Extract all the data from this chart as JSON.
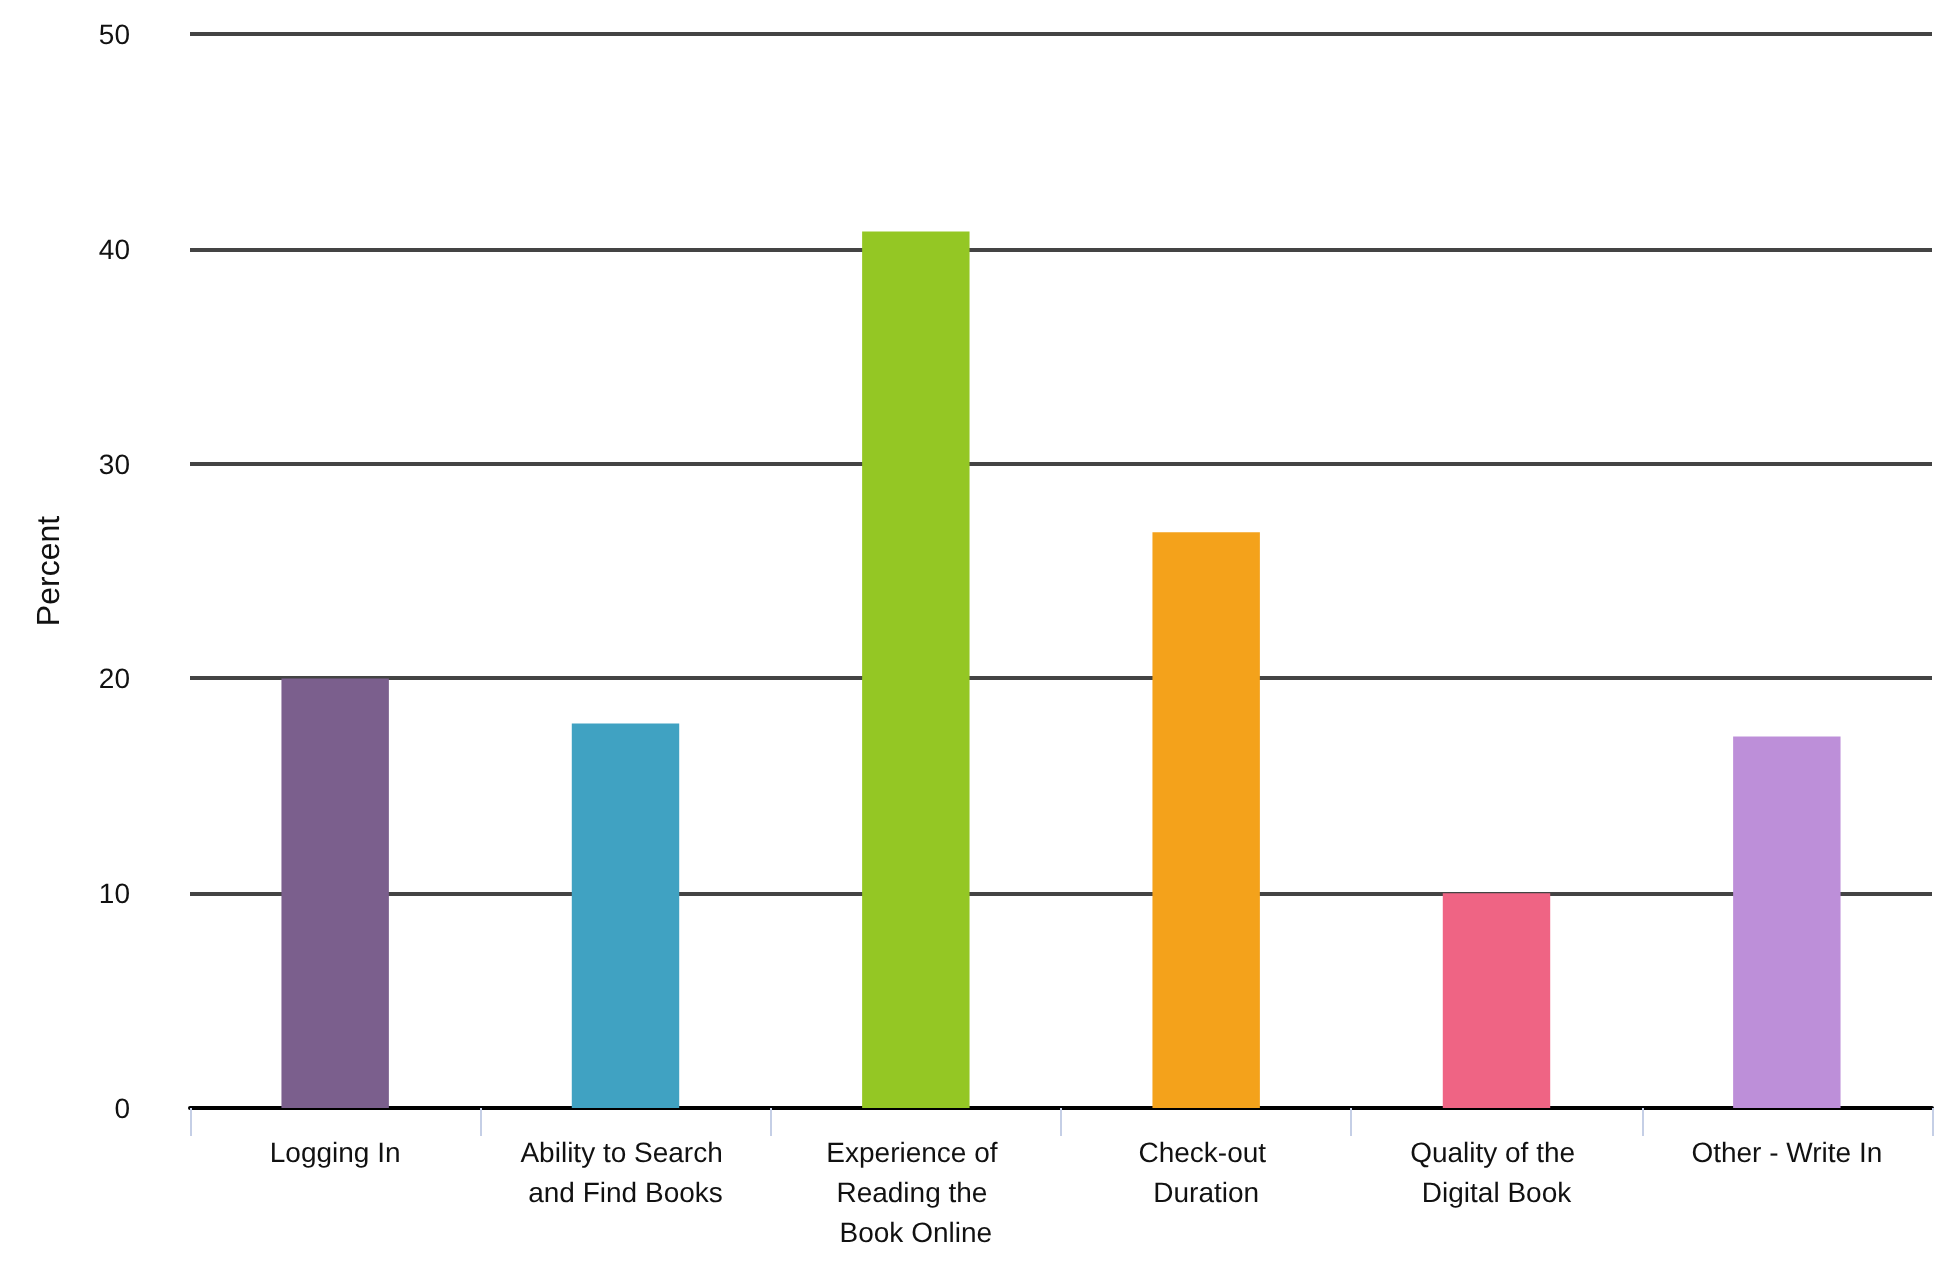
{
  "chart_data": {
    "type": "bar",
    "ylabel": "Percent",
    "categories": [
      "Logging In",
      "Ability to Search and Find Books",
      "Experience of Reading the Book Online",
      "Check-out Duration",
      "Quality of the Digital Book",
      "Other - Write In"
    ],
    "values": [
      20,
      17.9,
      40.8,
      26.8,
      10,
      17.3
    ],
    "colors": [
      "#7b5f8d",
      "#40a2c2",
      "#94c724",
      "#f4a21b",
      "#ef6484",
      "#bd8fd9"
    ],
    "ylim": [
      0,
      50
    ],
    "yticks": [
      0,
      10,
      20,
      30,
      40,
      50
    ],
    "grid": "y"
  }
}
